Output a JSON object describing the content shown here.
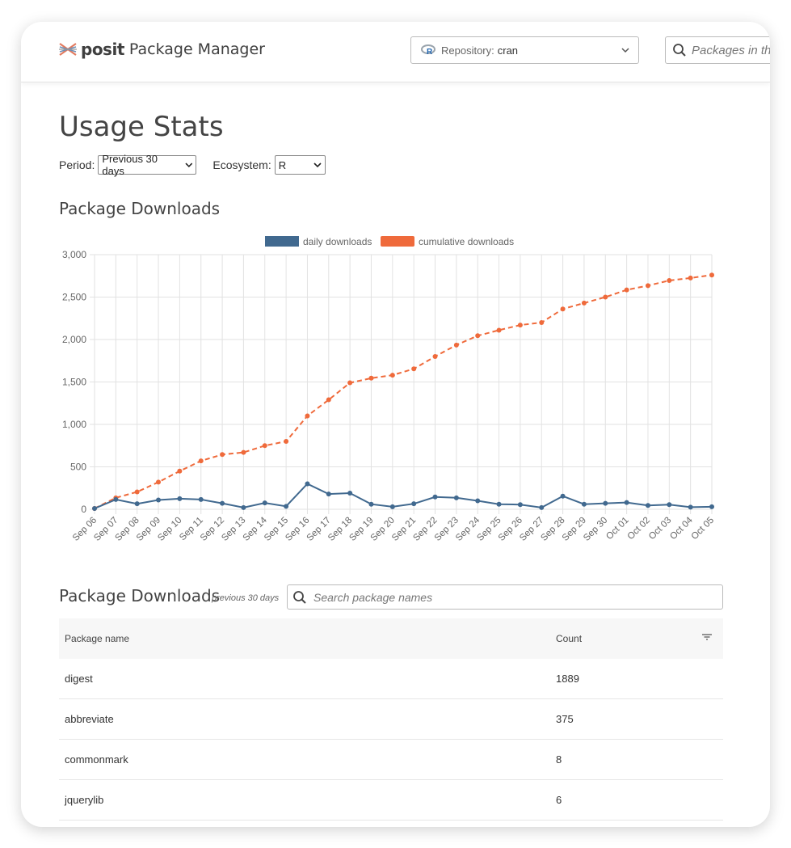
{
  "header": {
    "brand": "posit",
    "product": "Package Manager",
    "repo_label": "Repository:",
    "repo_value": "cran",
    "search_placeholder": "Packages in the"
  },
  "page": {
    "title": "Usage Stats",
    "period_label": "Period:",
    "period_value": "Previous 30 days",
    "ecosystem_label": "Ecosystem:",
    "ecosystem_value": "R",
    "chart_heading": "Package Downloads",
    "table_heading": "Package Downloads",
    "table_subheading": "previous 30 days",
    "table_search_placeholder": "Search package names"
  },
  "colors": {
    "daily": "#41698f",
    "cumulative": "#ef6a3b"
  },
  "chart_data": {
    "type": "line",
    "x": [
      "Sep 06",
      "Sep 07",
      "Sep 08",
      "Sep 09",
      "Sep 10",
      "Sep 11",
      "Sep 12",
      "Sep 13",
      "Sep 14",
      "Sep 15",
      "Sep 16",
      "Sep 17",
      "Sep 18",
      "Sep 19",
      "Sep 20",
      "Sep 21",
      "Sep 22",
      "Sep 23",
      "Sep 24",
      "Sep 25",
      "Sep 26",
      "Sep 27",
      "Sep 28",
      "Sep 29",
      "Sep 30",
      "Oct 01",
      "Oct 02",
      "Oct 03",
      "Oct 04",
      "Oct 05"
    ],
    "series": [
      {
        "name": "daily downloads",
        "style": "solid",
        "values": [
          10,
          115,
          65,
          110,
          125,
          115,
          70,
          20,
          75,
          35,
          300,
          180,
          190,
          60,
          30,
          65,
          145,
          135,
          100,
          60,
          55,
          20,
          155,
          60,
          70,
          80,
          45,
          55,
          25,
          30
        ]
      },
      {
        "name": "cumulative downloads",
        "style": "dashed",
        "values": [
          10,
          135,
          205,
          320,
          450,
          570,
          645,
          670,
          750,
          800,
          1100,
          1290,
          1490,
          1545,
          1580,
          1655,
          1800,
          1935,
          2045,
          2110,
          2170,
          2200,
          2360,
          2430,
          2500,
          2585,
          2635,
          2695,
          2725,
          2760
        ]
      }
    ],
    "ylim": [
      0,
      3000
    ],
    "yticks": [
      0,
      500,
      1000,
      1500,
      2000,
      2500,
      3000
    ],
    "ytick_labels": [
      "0",
      "500",
      "1,000",
      "1,500",
      "2,000",
      "2,500",
      "3,000"
    ],
    "grid": true,
    "legend": "top-center"
  },
  "table": {
    "columns": [
      "Package name",
      "Count"
    ],
    "rows": [
      {
        "name": "digest",
        "count": "1889"
      },
      {
        "name": "abbreviate",
        "count": "375"
      },
      {
        "name": "commonmark",
        "count": "8"
      },
      {
        "name": "jquerylib",
        "count": "6"
      }
    ]
  }
}
